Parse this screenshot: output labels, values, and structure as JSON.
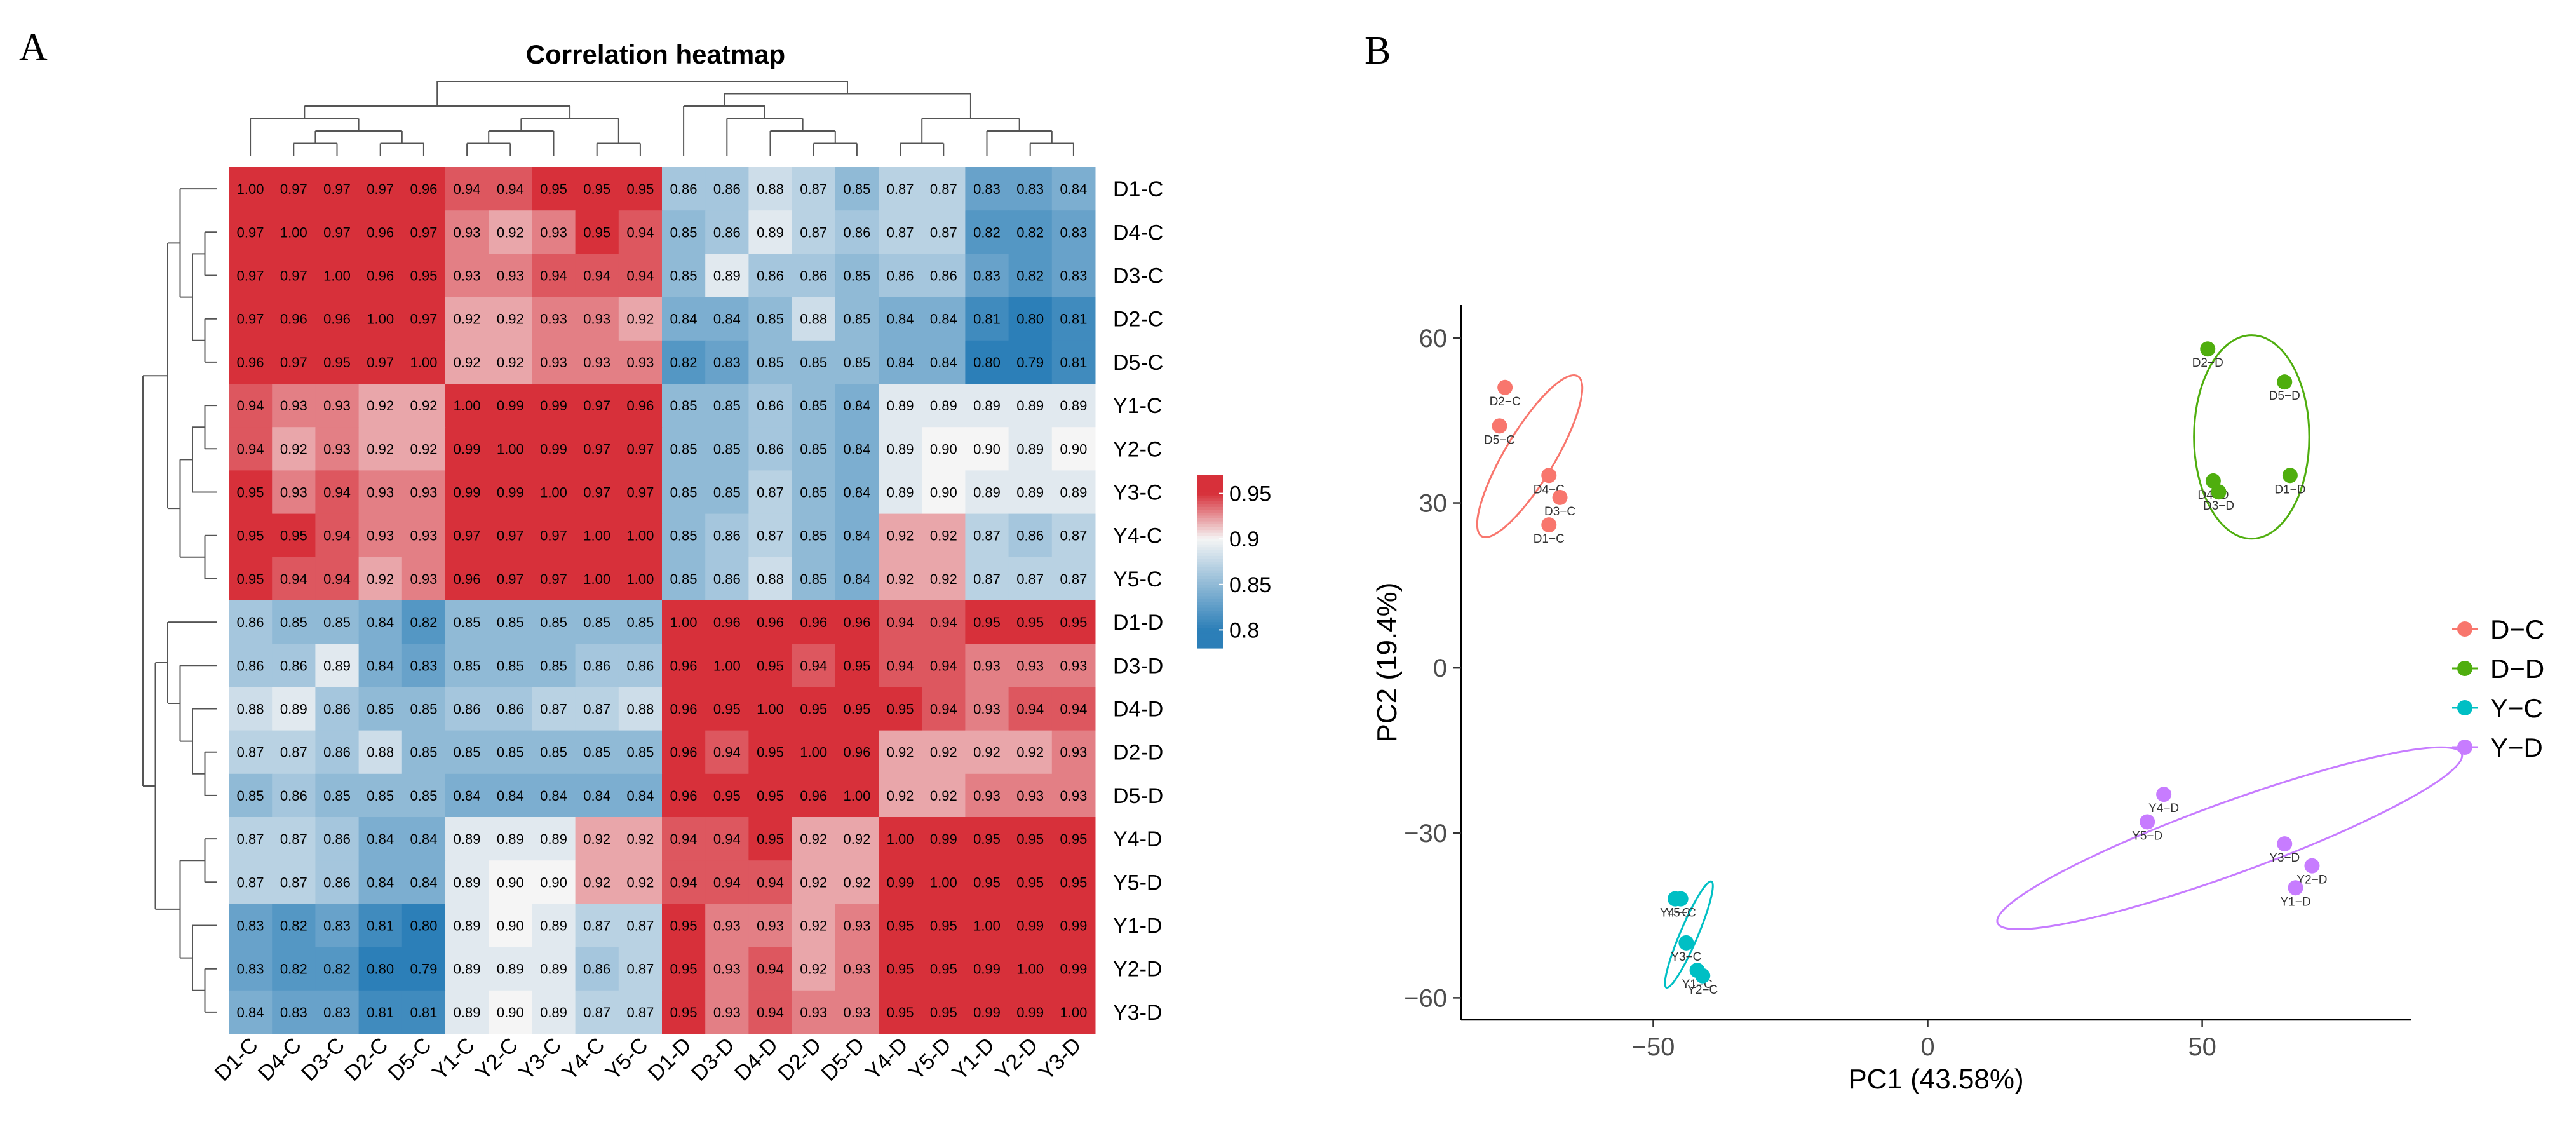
{
  "panel_labels": {
    "a": "A",
    "b": "B"
  },
  "chart_data": [
    {
      "type": "heatmap",
      "title": "Correlation heatmap",
      "labels": [
        "D1-C",
        "D4-C",
        "D3-C",
        "D2-C",
        "D5-C",
        "Y1-C",
        "Y2-C",
        "Y3-C",
        "Y4-C",
        "Y5-C",
        "D1-D",
        "D3-D",
        "D4-D",
        "D2-D",
        "D5-D",
        "Y4-D",
        "Y5-D",
        "Y1-D",
        "Y2-D",
        "Y3-D"
      ],
      "matrix": [
        [
          1.0,
          0.97,
          0.97,
          0.97,
          0.96,
          0.94,
          0.94,
          0.95,
          0.95,
          0.95,
          0.86,
          0.86,
          0.88,
          0.87,
          0.85,
          0.87,
          0.87,
          0.83,
          0.83,
          0.84
        ],
        [
          0.97,
          1.0,
          0.97,
          0.96,
          0.97,
          0.93,
          0.92,
          0.93,
          0.95,
          0.94,
          0.85,
          0.86,
          0.89,
          0.87,
          0.86,
          0.87,
          0.87,
          0.82,
          0.82,
          0.83
        ],
        [
          0.97,
          0.97,
          1.0,
          0.96,
          0.95,
          0.93,
          0.93,
          0.94,
          0.94,
          0.94,
          0.85,
          0.89,
          0.86,
          0.86,
          0.85,
          0.86,
          0.86,
          0.83,
          0.82,
          0.83
        ],
        [
          0.97,
          0.96,
          0.96,
          1.0,
          0.97,
          0.92,
          0.92,
          0.93,
          0.93,
          0.92,
          0.84,
          0.84,
          0.85,
          0.88,
          0.85,
          0.84,
          0.84,
          0.81,
          0.8,
          0.81
        ],
        [
          0.96,
          0.97,
          0.95,
          0.97,
          1.0,
          0.92,
          0.92,
          0.93,
          0.93,
          0.93,
          0.82,
          0.83,
          0.85,
          0.85,
          0.85,
          0.84,
          0.84,
          0.8,
          0.79,
          0.81
        ],
        [
          0.94,
          0.93,
          0.93,
          0.92,
          0.92,
          1.0,
          0.99,
          0.99,
          0.97,
          0.96,
          0.85,
          0.85,
          0.86,
          0.85,
          0.84,
          0.89,
          0.89,
          0.89,
          0.89,
          0.89
        ],
        [
          0.94,
          0.92,
          0.93,
          0.92,
          0.92,
          0.99,
          1.0,
          0.99,
          0.97,
          0.97,
          0.85,
          0.85,
          0.86,
          0.85,
          0.84,
          0.89,
          0.9,
          0.9,
          0.89,
          0.9
        ],
        [
          0.95,
          0.93,
          0.94,
          0.93,
          0.93,
          0.99,
          0.99,
          1.0,
          0.97,
          0.97,
          0.85,
          0.85,
          0.87,
          0.85,
          0.84,
          0.89,
          0.9,
          0.89,
          0.89,
          0.89
        ],
        [
          0.95,
          0.95,
          0.94,
          0.93,
          0.93,
          0.97,
          0.97,
          0.97,
          1.0,
          1.0,
          0.85,
          0.86,
          0.87,
          0.85,
          0.84,
          0.92,
          0.92,
          0.87,
          0.86,
          0.87
        ],
        [
          0.95,
          0.94,
          0.94,
          0.92,
          0.93,
          0.96,
          0.97,
          0.97,
          1.0,
          1.0,
          0.85,
          0.86,
          0.88,
          0.85,
          0.84,
          0.92,
          0.92,
          0.87,
          0.87,
          0.87
        ],
        [
          0.86,
          0.85,
          0.85,
          0.84,
          0.82,
          0.85,
          0.85,
          0.85,
          0.85,
          0.85,
          1.0,
          0.96,
          0.96,
          0.96,
          0.96,
          0.94,
          0.94,
          0.95,
          0.95,
          0.95
        ],
        [
          0.86,
          0.86,
          0.89,
          0.84,
          0.83,
          0.85,
          0.85,
          0.85,
          0.86,
          0.86,
          0.96,
          1.0,
          0.95,
          0.94,
          0.95,
          0.94,
          0.94,
          0.93,
          0.93,
          0.93
        ],
        [
          0.88,
          0.89,
          0.86,
          0.85,
          0.85,
          0.86,
          0.86,
          0.87,
          0.87,
          0.88,
          0.96,
          0.95,
          1.0,
          0.95,
          0.95,
          0.95,
          0.94,
          0.93,
          0.94,
          0.94
        ],
        [
          0.87,
          0.87,
          0.86,
          0.88,
          0.85,
          0.85,
          0.85,
          0.85,
          0.85,
          0.85,
          0.96,
          0.94,
          0.95,
          1.0,
          0.96,
          0.92,
          0.92,
          0.92,
          0.92,
          0.93
        ],
        [
          0.85,
          0.86,
          0.85,
          0.85,
          0.85,
          0.84,
          0.84,
          0.84,
          0.84,
          0.84,
          0.96,
          0.95,
          0.95,
          0.96,
          1.0,
          0.92,
          0.92,
          0.93,
          0.93,
          0.93
        ],
        [
          0.87,
          0.87,
          0.86,
          0.84,
          0.84,
          0.89,
          0.89,
          0.89,
          0.92,
          0.92,
          0.94,
          0.94,
          0.95,
          0.92,
          0.92,
          1.0,
          0.99,
          0.95,
          0.95,
          0.95
        ],
        [
          0.87,
          0.87,
          0.86,
          0.84,
          0.84,
          0.89,
          0.9,
          0.9,
          0.92,
          0.92,
          0.94,
          0.94,
          0.94,
          0.92,
          0.92,
          0.99,
          1.0,
          0.95,
          0.95,
          0.95
        ],
        [
          0.83,
          0.82,
          0.83,
          0.81,
          0.8,
          0.89,
          0.9,
          0.89,
          0.87,
          0.87,
          0.95,
          0.93,
          0.93,
          0.92,
          0.93,
          0.95,
          0.95,
          1.0,
          0.99,
          0.99
        ],
        [
          0.83,
          0.82,
          0.82,
          0.8,
          0.79,
          0.89,
          0.89,
          0.89,
          0.86,
          0.87,
          0.95,
          0.93,
          0.94,
          0.92,
          0.93,
          0.95,
          0.95,
          0.99,
          1.0,
          0.99
        ],
        [
          0.84,
          0.83,
          0.83,
          0.81,
          0.81,
          0.89,
          0.9,
          0.89,
          0.87,
          0.87,
          0.95,
          0.93,
          0.94,
          0.93,
          0.93,
          0.95,
          0.95,
          0.99,
          0.99,
          1.0
        ]
      ],
      "color_scale": {
        "low": 0.8,
        "mid": 0.9,
        "high": 0.95,
        "low_color": "#2c7fb8",
        "mid_color": "#f5f5f5",
        "high_color": "#d7303a"
      },
      "legend_ticks": [
        "0.95",
        "0.9",
        "0.85",
        "0.8"
      ],
      "legend_tick_values": [
        0.95,
        0.9,
        0.85,
        0.8
      ],
      "legend_range": [
        0.78,
        0.97
      ]
    },
    {
      "type": "scatter",
      "xlabel": "PC1 (43.58%)",
      "ylabel": "PC2 (19.4%)",
      "xlim": [
        -85,
        88
      ],
      "ylim": [
        -64,
        66
      ],
      "xticks": [
        -50,
        0,
        50
      ],
      "xtick_labels": [
        "−50",
        "0",
        "50"
      ],
      "yticks": [
        60,
        30,
        0,
        -30,
        -60
      ],
      "ytick_labels": [
        "60",
        "30",
        "0",
        "−30",
        "−60"
      ],
      "series": [
        {
          "name": "D−C",
          "color": "#f8766d",
          "points": [
            {
              "label": "D2-C",
              "x": -77,
              "y": 51
            },
            {
              "label": "D5-C",
              "x": -78,
              "y": 44
            },
            {
              "label": "D4-C",
              "x": -69,
              "y": 35
            },
            {
              "label": "D3-C",
              "x": -67,
              "y": 31
            },
            {
              "label": "D1-C",
              "x": -69,
              "y": 26
            }
          ],
          "ellipse": {
            "cx": -72.5,
            "cy": 38.5,
            "rx": 17,
            "ry": 4.5,
            "angle_deg": -59
          }
        },
        {
          "name": "D−D",
          "color": "#4fae0e",
          "points": [
            {
              "label": "D2-D",
              "x": 51,
              "y": 58
            },
            {
              "label": "D5-D",
              "x": 65,
              "y": 52
            },
            {
              "label": "D4-D",
              "x": 52,
              "y": 34
            },
            {
              "label": "D3-D",
              "x": 53,
              "y": 32
            },
            {
              "label": "D1-D",
              "x": 66,
              "y": 35
            }
          ],
          "ellipse": {
            "cx": 59,
            "cy": 42,
            "rx": 10.5,
            "ry": 18.5,
            "angle_deg": 0
          }
        },
        {
          "name": "Y−C",
          "color": "#00bfc4",
          "points": [
            {
              "label": "Y4-C",
              "x": -46,
              "y": -42
            },
            {
              "label": "Y5-C",
              "x": -45,
              "y": -42
            },
            {
              "label": "Y3-C",
              "x": -44,
              "y": -50
            },
            {
              "label": "Y1-C",
              "x": -42,
              "y": -55
            },
            {
              "label": "Y2-C",
              "x": -41,
              "y": -56
            }
          ],
          "ellipse": {
            "cx": -43.5,
            "cy": -48.5,
            "rx": 10.5,
            "ry": 1.6,
            "angle_deg": -67
          }
        },
        {
          "name": "Y−D",
          "color": "#c77cff",
          "points": [
            {
              "label": "Y4-D",
              "x": 43,
              "y": -23
            },
            {
              "label": "Y5-D",
              "x": 40,
              "y": -28
            },
            {
              "label": "Y3-D",
              "x": 65,
              "y": -32
            },
            {
              "label": "Y2-D",
              "x": 70,
              "y": -36
            },
            {
              "label": "Y1-D",
              "x": 67,
              "y": -40
            }
          ],
          "ellipse": {
            "cx": 55,
            "cy": -31,
            "rx": 45,
            "ry": 6.5,
            "angle_deg": -20
          }
        }
      ]
    }
  ]
}
